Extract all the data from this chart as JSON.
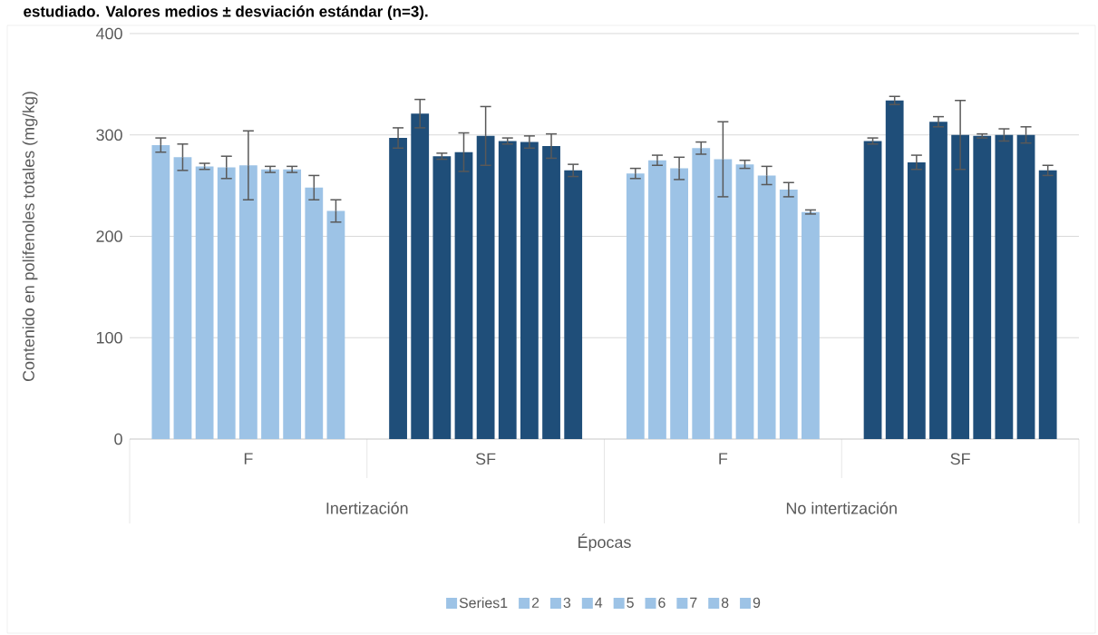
{
  "chart_data": {
    "type": "bar",
    "title": "estudiado. Valores medios ± desviación estándar (n=3).",
    "xlabel": "Épocas",
    "ylabel": "Contenido en polifenoles totales (mg/kg)",
    "categories": [
      "F",
      "SF",
      "F",
      "SF"
    ],
    "annotations": [
      "Inertización",
      "No intertización"
    ],
    "ylim": [
      0,
      400
    ],
    "yticks": [
      0,
      100,
      200,
      300,
      400
    ],
    "grid": "y",
    "legend": "bottom",
    "series": [
      {
        "name": "Series1",
        "colors": [
          "#9dc3e6",
          "#1f4e79",
          "#9dc3e6",
          "#1f4e79"
        ],
        "values": [
          290,
          297,
          262,
          294
        ],
        "errors": [
          7,
          10,
          5,
          3
        ]
      },
      {
        "name": "2",
        "colors": [
          "#9dc3e6",
          "#1f4e79",
          "#9dc3e6",
          "#1f4e79"
        ],
        "values": [
          278,
          321,
          275,
          334
        ],
        "errors": [
          13,
          14,
          5,
          4
        ]
      },
      {
        "name": "3",
        "colors": [
          "#9dc3e6",
          "#1f4e79",
          "#9dc3e6",
          "#1f4e79"
        ],
        "values": [
          269,
          279,
          267,
          273
        ],
        "errors": [
          3,
          3,
          11,
          7
        ]
      },
      {
        "name": "4",
        "colors": [
          "#9dc3e6",
          "#1f4e79",
          "#9dc3e6",
          "#1f4e79"
        ],
        "values": [
          268,
          283,
          287,
          313
        ],
        "errors": [
          11,
          19,
          6,
          5
        ]
      },
      {
        "name": "5",
        "colors": [
          "#9dc3e6",
          "#1f4e79",
          "#9dc3e6",
          "#1f4e79"
        ],
        "values": [
          270,
          299,
          276,
          300
        ],
        "errors": [
          34,
          29,
          37,
          34
        ]
      },
      {
        "name": "6",
        "colors": [
          "#9dc3e6",
          "#1f4e79",
          "#9dc3e6",
          "#1f4e79"
        ],
        "values": [
          266,
          294,
          271,
          299
        ],
        "errors": [
          3,
          3,
          4,
          2
        ]
      },
      {
        "name": "7",
        "colors": [
          "#9dc3e6",
          "#1f4e79",
          "#9dc3e6",
          "#1f4e79"
        ],
        "values": [
          266,
          293,
          260,
          300
        ],
        "errors": [
          3,
          6,
          9,
          6
        ]
      },
      {
        "name": "8",
        "colors": [
          "#9dc3e6",
          "#1f4e79",
          "#9dc3e6",
          "#1f4e79"
        ],
        "values": [
          248,
          289,
          246,
          300
        ],
        "errors": [
          12,
          12,
          7,
          8
        ]
      },
      {
        "name": "9",
        "colors": [
          "#9dc3e6",
          "#1f4e79",
          "#9dc3e6",
          "#1f4e79"
        ],
        "values": [
          225,
          265,
          224,
          265
        ],
        "errors": [
          11,
          6,
          2,
          5
        ]
      }
    ]
  }
}
